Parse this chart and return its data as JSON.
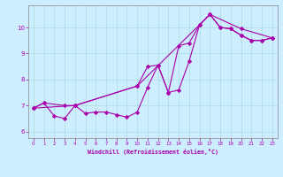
{
  "xlabel": "Windchill (Refroidissement éolien,°C)",
  "ylabel": "",
  "bg_color": "#cceeff",
  "line_color": "#aa00aa",
  "marker_color": "#aa00aa",
  "xlim": [
    -0.5,
    23.5
  ],
  "ylim": [
    5.75,
    10.85
  ],
  "xticks": [
    0,
    1,
    2,
    3,
    4,
    5,
    6,
    7,
    8,
    9,
    10,
    11,
    12,
    13,
    14,
    15,
    16,
    17,
    18,
    19,
    20,
    21,
    22,
    23
  ],
  "yticks": [
    6,
    7,
    8,
    9,
    10
  ],
  "series1": [
    [
      0,
      6.9
    ],
    [
      1,
      7.1
    ],
    [
      2,
      6.6
    ],
    [
      3,
      6.5
    ],
    [
      4,
      7.0
    ],
    [
      5,
      6.7
    ],
    [
      6,
      6.75
    ],
    [
      7,
      6.75
    ],
    [
      8,
      6.65
    ],
    [
      9,
      6.55
    ],
    [
      10,
      6.75
    ],
    [
      11,
      7.7
    ],
    [
      12,
      8.55
    ],
    [
      13,
      7.5
    ],
    [
      14,
      9.3
    ],
    [
      15,
      9.4
    ],
    [
      16,
      10.1
    ],
    [
      17,
      10.5
    ],
    [
      18,
      10.0
    ],
    [
      19,
      9.95
    ],
    [
      20,
      9.7
    ],
    [
      21,
      9.5
    ],
    [
      22,
      9.5
    ],
    [
      23,
      9.6
    ]
  ],
  "series2": [
    [
      0,
      6.9
    ],
    [
      1,
      7.1
    ],
    [
      3,
      7.0
    ],
    [
      4,
      7.0
    ],
    [
      10,
      7.75
    ],
    [
      11,
      8.5
    ],
    [
      12,
      8.55
    ],
    [
      13,
      7.5
    ],
    [
      14,
      7.6
    ],
    [
      15,
      8.7
    ],
    [
      16,
      10.1
    ],
    [
      17,
      10.5
    ],
    [
      18,
      10.0
    ],
    [
      19,
      9.95
    ],
    [
      20,
      9.7
    ],
    [
      21,
      9.5
    ],
    [
      22,
      9.5
    ],
    [
      23,
      9.6
    ]
  ],
  "series3": [
    [
      0,
      6.9
    ],
    [
      4,
      7.0
    ],
    [
      10,
      7.75
    ],
    [
      16,
      10.1
    ],
    [
      17,
      10.5
    ],
    [
      20,
      9.95
    ],
    [
      23,
      9.6
    ]
  ]
}
